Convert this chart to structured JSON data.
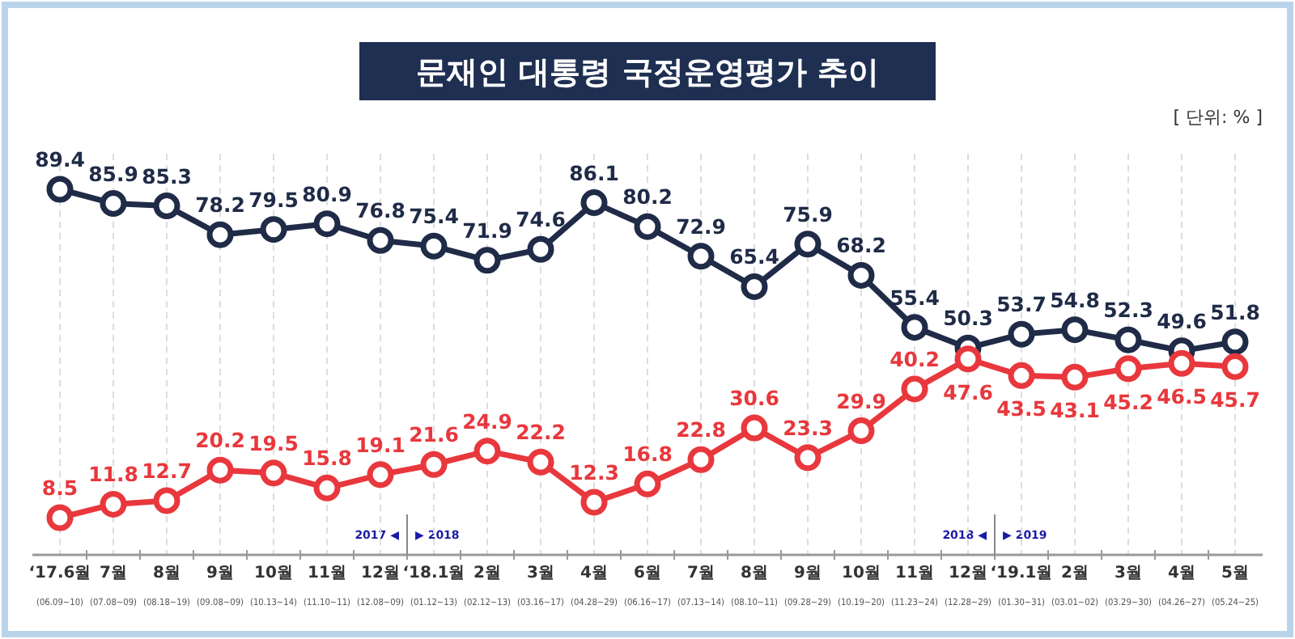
{
  "chart_data": {
    "type": "line",
    "title": "문재인 대통령 국정운영평가 추이",
    "annotations": [
      "[ 단위: % ]",
      "2017 ◀",
      "▶ 2018",
      "2018 ◀",
      "▶ 2019"
    ],
    "categories": [
      "‘17.6월\n(06.09~10)",
      "7월\n(07.08~09)",
      "8월\n(08.18~19)",
      "9월\n(09.08~09)",
      "10월\n(10.13~14)",
      "11월\n(11.10~11)",
      "12월\n(12.08~09)",
      "‘18.1월\n(01.12~13)",
      "2월\n(02.12~13)",
      "3월\n(03.16~17)",
      "4월\n(04.28~29)",
      "6월\n(06.16~17)",
      "7월\n(07.13~14)",
      "8월\n(08.10~11)",
      "9월\n(09.28~29)",
      "10월\n(10.19~20)",
      "11월\n(11.23~24)",
      "12월\n(12.28~29)",
      "‘19.1월\n(01.30~31)",
      "2월\n(03.01~02)",
      "3월\n(03.29~30)",
      "4월\n(04.26~27)",
      "5월\n(05.24~25)"
    ],
    "series": [
      {
        "color": "#1f2b47",
        "values": [
          89.4,
          85.9,
          85.3,
          78.2,
          79.5,
          80.9,
          76.8,
          75.4,
          71.9,
          74.6,
          86.1,
          80.2,
          72.9,
          65.4,
          75.9,
          68.2,
          55.4,
          50.3,
          53.7,
          54.8,
          52.3,
          49.6,
          51.8
        ]
      },
      {
        "color": "#e8383d",
        "values": [
          8.5,
          11.8,
          12.7,
          20.2,
          19.5,
          15.8,
          19.1,
          21.6,
          24.9,
          22.2,
          12.3,
          16.8,
          22.8,
          30.6,
          23.3,
          29.9,
          40.2,
          47.6,
          43.5,
          43.1,
          45.2,
          46.5,
          45.7
        ]
      }
    ],
    "data_labels": true,
    "grid": "x",
    "marker": "circle",
    "line_style": "solid"
  }
}
